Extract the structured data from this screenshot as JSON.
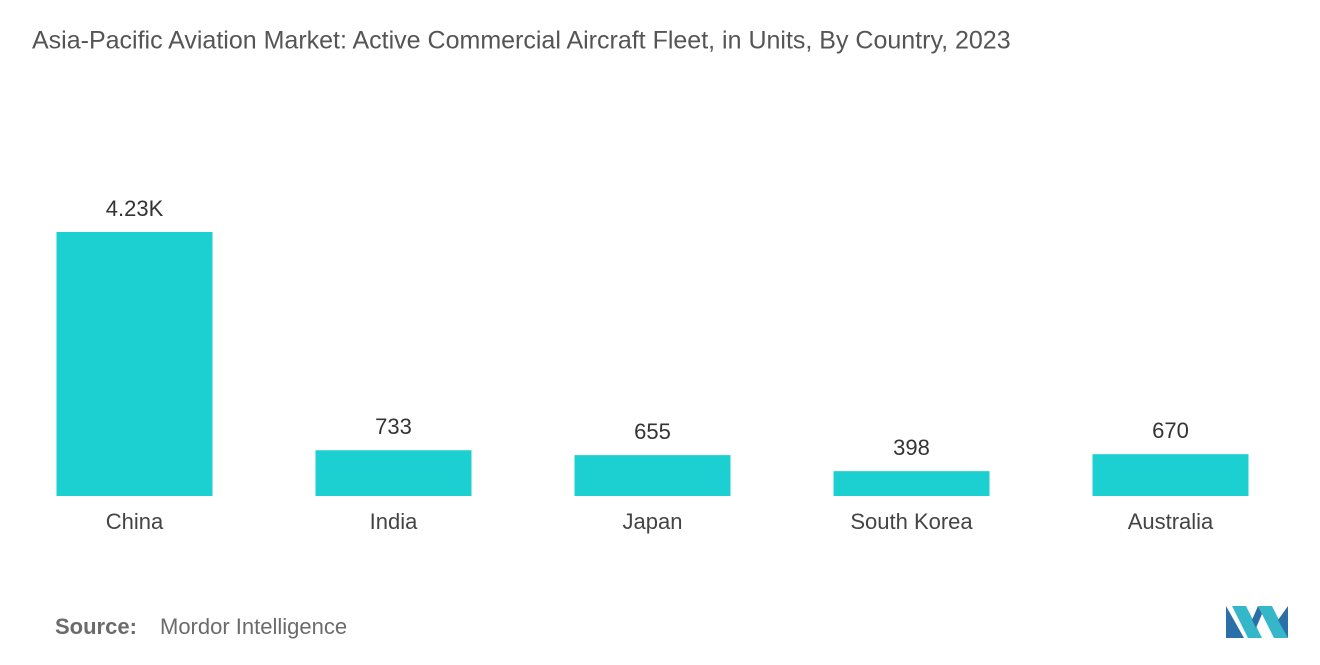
{
  "chart_data": {
    "type": "bar",
    "title": "Asia-Pacific Aviation Market: Active Commercial Aircraft Fleet, in Units, By Country, 2023",
    "categories": [
      "China",
      "India",
      "Japan",
      "South Korea",
      "Australia"
    ],
    "values": [
      4230,
      733,
      655,
      398,
      670
    ],
    "value_labels": [
      "4.23K",
      "733",
      "655",
      "398",
      "670"
    ],
    "color": "#1ccfd1",
    "source_label": "Source:",
    "source": "Mordor Intelligence"
  }
}
